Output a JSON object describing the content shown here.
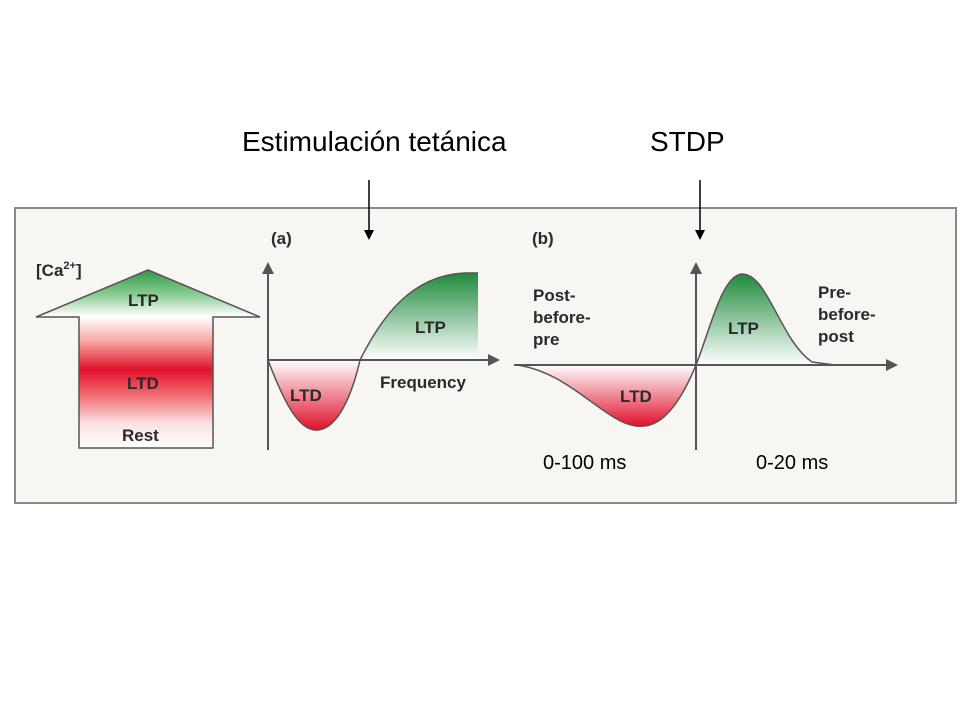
{
  "titles": {
    "left": "Estimulación tetánica",
    "right": "STDP"
  },
  "panel_calcium": {
    "axis_label": "[Ca",
    "axis_label_sup": "2+",
    "axis_label_end": "]",
    "ltp": "LTP",
    "ltd": "LTD",
    "rest": "Rest"
  },
  "panel_a": {
    "tag": "(a)",
    "ltd": "LTD",
    "ltp": "LTP",
    "xlabel": "Frequency"
  },
  "panel_b": {
    "tag": "(b)",
    "left_label": [
      "Post-",
      "before-",
      "pre"
    ],
    "right_label": [
      "Pre-",
      "before-",
      "post"
    ],
    "ltd": "LTD",
    "ltp": "LTP"
  },
  "time_labels": {
    "left": "0-100 ms",
    "right": "0-20 ms"
  },
  "colors": {
    "ltp_green": "#2e9a47",
    "ltd_red": "#e0102a",
    "frame": "#8a8a8a",
    "panel_bg": "#f7f6f2"
  }
}
